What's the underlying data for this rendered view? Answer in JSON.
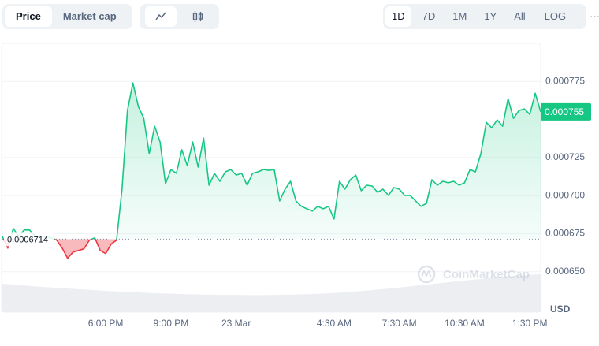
{
  "toolbar": {
    "tabs": [
      "Price",
      "Market cap"
    ],
    "ranges": [
      "1D",
      "7D",
      "1M",
      "1Y",
      "All",
      "LOG"
    ],
    "more": "···"
  },
  "chart_data": {
    "type": "line",
    "watermark": "CoinMarketCap",
    "currency": "USD",
    "up_color": "#16c784",
    "down_color": "#ea3943",
    "baseline": 0.0006714,
    "current_price": 0.000755,
    "xlim": [
      0,
      99
    ],
    "xticks": [
      {
        "value": 19,
        "label": "6:00 PM"
      },
      {
        "value": 31,
        "label": "9:00 PM"
      },
      {
        "value": 43,
        "label": "23 Mar"
      },
      {
        "value": 61,
        "label": "4:30 AM"
      },
      {
        "value": 73,
        "label": "7:30 AM"
      },
      {
        "value": 85,
        "label": "10:30 AM"
      },
      {
        "value": 97,
        "label": "1:30 PM"
      }
    ],
    "ylim": [
      0.00064,
      0.0008
    ],
    "yticks": [
      {
        "value": 0.00065,
        "label": "0.000650"
      },
      0.000675,
      {
        "value": 0.0007,
        "label": "0.000700"
      },
      0.000725,
      0.000775
    ],
    "grid": true,
    "values": [
      0.0006732,
      0.0006655,
      0.0006784,
      0.0006732,
      0.0006774,
      0.0006774,
      0.0006732,
      0.0006732,
      0.0006732,
      0.0006722,
      0.0006707,
      0.0006655,
      0.0006588,
      0.0006629,
      0.0006639,
      0.000665,
      0.0006707,
      0.0006722,
      0.0006639,
      0.0006619,
      0.0006681,
      0.0006707,
      0.0007042,
      0.0007559,
      0.000774,
      0.0007585,
      0.0007507,
      0.0007275,
      0.0007456,
      0.0007352,
      0.0007078,
      0.0007171,
      0.0007146,
      0.0007301,
      0.0007197,
      0.0007352,
      0.0007187,
      0.0007378,
      0.0007068,
      0.0007146,
      0.0007094,
      0.0007156,
      0.0007171,
      0.0007135,
      0.0007146,
      0.0007068,
      0.0007146,
      0.0007156,
      0.0007171,
      0.0007166,
      0.0007171,
      0.0006965,
      0.0007042,
      0.0007094,
      0.0006965,
      0.0006929,
      0.0006913,
      0.0006898,
      0.0006929,
      0.0006913,
      0.0006929,
      0.0006846,
      0.0007094,
      0.0007042,
      0.0007104,
      0.0007135,
      0.0007032,
      0.0007068,
      0.0007063,
      0.0007022,
      0.0007042,
      0.0007001,
      0.0007053,
      0.0007042,
      0.0007001,
      0.0007001,
      0.0006965,
      0.0006929,
      0.0006949,
      0.0007104,
      0.0007068,
      0.0007094,
      0.0007084,
      0.0007094,
      0.0007068,
      0.0007084,
      0.0007171,
      0.0007156,
      0.0007275,
      0.0007481,
      0.0007445,
      0.0007497,
      0.0007456,
      0.0007636,
      0.0007507,
      0.0007559,
      0.0007569,
      0.0007533,
      0.0007672,
      0.000755
    ]
  }
}
